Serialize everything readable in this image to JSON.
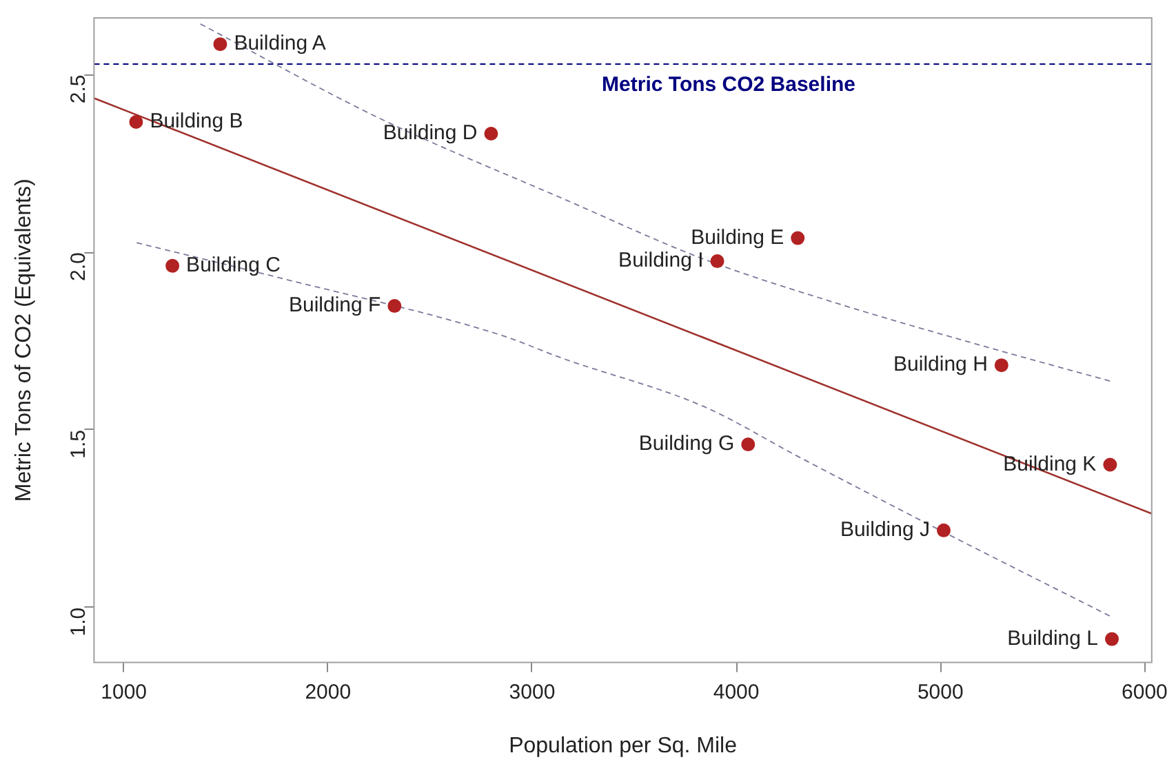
{
  "chart_data": {
    "type": "scatter",
    "xlabel": "Population per Sq. Mile",
    "ylabel": "Metric Tons of CO2 (Equivalents)",
    "xlim": [
      854,
      6035
    ],
    "xticks": [
      1000,
      2000,
      3000,
      4000,
      5000,
      6000
    ],
    "ylim": [
      0.845,
      2.66
    ],
    "yticks": [
      {
        "value": 1,
        "label": "1.0"
      },
      1.5,
      {
        "value": 2,
        "label": "2.0"
      },
      2.5
    ],
    "grid": false,
    "legend": false,
    "marker": "circle",
    "series": [
      {
        "type": "scatter",
        "color": "#b22222",
        "x": [
          1472,
          1060,
          1238,
          2799,
          4301,
          2326,
          4058,
          5299,
          3907,
          5016,
          5831,
          5840
        ],
        "values": [
          2.586,
          2.367,
          1.962,
          2.334,
          2.04,
          1.849,
          1.459,
          1.682,
          1.975,
          1.217,
          1.402,
          0.911
        ]
      },
      {
        "type": "line",
        "color": "#a0322d",
        "line_style": "solid",
        "marker": "none",
        "x": [
          854,
          6035
        ],
        "values": [
          2.434,
          1.264
        ]
      },
      {
        "type": "line",
        "color": "#7a7a9a",
        "line_style": "dashed",
        "marker": "none",
        "x": [
          1375,
          2243,
          3167,
          3840,
          4535,
          5229,
          5840
        ],
        "values": [
          2.643,
          2.38,
          2.147,
          1.981,
          1.849,
          1.733,
          1.636
        ]
      },
      {
        "type": "line",
        "color": "#7a7a9a",
        "line_style": "dashed",
        "marker": "none",
        "x": [
          1063,
          1778,
          2847,
          3146,
          3840,
          4306,
          5000,
          5840
        ],
        "values": [
          2.027,
          1.926,
          1.767,
          1.702,
          1.566,
          1.424,
          1.217,
          0.973
        ]
      }
    ],
    "ref_lines": [
      {
        "axis": "y",
        "value": 2.53,
        "label": "Metric Tons CO2 Baseline",
        "color": "#000080",
        "line_style": "dashed"
      }
    ],
    "annotations": [
      {
        "text": "Building A",
        "x": 1472,
        "y": 2.586
      },
      {
        "text": "Building B",
        "x": 1060,
        "y": 2.367
      },
      {
        "text": "Building C",
        "x": 1238,
        "y": 1.962
      },
      {
        "text": "Building D",
        "x": 2799,
        "y": 2.334
      },
      {
        "text": "Building E",
        "x": 4301,
        "y": 2.04
      },
      {
        "text": "Building F",
        "x": 2326,
        "y": 1.849
      },
      {
        "text": "Building G",
        "x": 4058,
        "y": 1.459
      },
      {
        "text": "Building H",
        "x": 5299,
        "y": 1.682
      },
      {
        "text": "Building I",
        "x": 3907,
        "y": 1.975
      },
      {
        "text": "Building J",
        "x": 5016,
        "y": 1.217
      },
      {
        "text": "Building K",
        "x": 5831,
        "y": 1.402
      },
      {
        "text": "Building L",
        "x": 5840,
        "y": 0.911
      }
    ]
  }
}
